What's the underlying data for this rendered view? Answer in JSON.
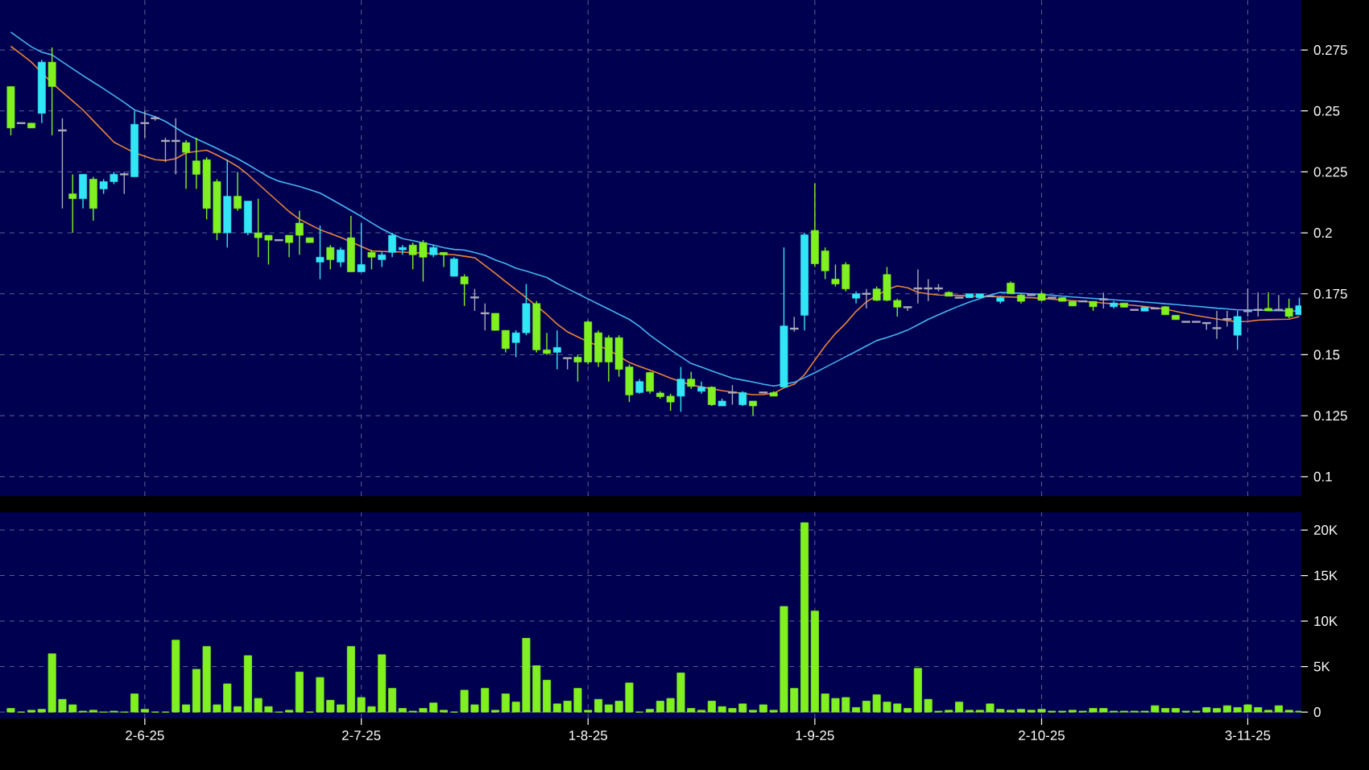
{
  "chart_data": [
    {
      "type": "candlestick",
      "tick_labels": "y",
      "grid": true,
      "categories": [
        null,
        null,
        null,
        null,
        null,
        null,
        null,
        null,
        null,
        null,
        null,
        null,
        null,
        null,
        null,
        null,
        null,
        null,
        null,
        null,
        null,
        null,
        null,
        null,
        null,
        null,
        null,
        null,
        null,
        null,
        null,
        null,
        null,
        null,
        null,
        null,
        null,
        null,
        null,
        null,
        null,
        null,
        null,
        null,
        null,
        null,
        null,
        null,
        null,
        null,
        null,
        null,
        null,
        null,
        null,
        null,
        null,
        null,
        null,
        null,
        null,
        null,
        null,
        null,
        null,
        null,
        null,
        null,
        null,
        null,
        null,
        null,
        null,
        null,
        null,
        null,
        null,
        null,
        null,
        null,
        null,
        null,
        null,
        null,
        null,
        null,
        null,
        null,
        null,
        null,
        null,
        null,
        null,
        null,
        null,
        null,
        null,
        null,
        null,
        null,
        null,
        null,
        null,
        null,
        null,
        null,
        null,
        null,
        null,
        null,
        null,
        null,
        null,
        null,
        null,
        null,
        null,
        null,
        null,
        null,
        null,
        null,
        null,
        null,
        null,
        null
      ],
      "ohlc": [
        [
          0.26,
          0.26,
          0.24,
          0.243
        ],
        [
          0.245,
          0.245,
          0.245,
          0.245
        ],
        [
          0.245,
          0.245,
          0.243,
          0.243
        ],
        [
          0.249,
          0.271,
          0.245,
          0.27
        ],
        [
          0.27,
          0.276,
          0.24,
          0.26
        ],
        [
          0.242,
          0.247,
          0.21,
          0.242
        ],
        [
          0.216,
          0.224,
          0.2,
          0.214
        ],
        [
          0.214,
          0.224,
          0.21,
          0.224
        ],
        [
          0.222,
          0.223,
          0.205,
          0.21
        ],
        [
          0.218,
          0.222,
          0.216,
          0.221
        ],
        [
          0.221,
          0.225,
          0.22,
          0.224
        ],
        [
          0.224,
          0.225,
          0.216,
          0.224
        ],
        [
          0.223,
          0.25,
          0.223,
          0.2445
        ],
        [
          0.245,
          0.25,
          0.239,
          0.245
        ],
        [
          0.247,
          0.248,
          0.246,
          0.247
        ],
        [
          0.2377,
          0.239,
          0.229,
          0.2377
        ],
        [
          0.2377,
          0.247,
          0.224,
          0.2377
        ],
        [
          0.237,
          0.238,
          0.218,
          0.233
        ],
        [
          0.2295,
          0.239,
          0.218,
          0.224
        ],
        [
          0.23,
          0.231,
          0.2055,
          0.21
        ],
        [
          0.221,
          0.222,
          0.197,
          0.2
        ],
        [
          0.2,
          0.23,
          0.194,
          0.215
        ],
        [
          0.215,
          0.225,
          0.209,
          0.21
        ],
        [
          0.2,
          0.213,
          0.199,
          0.213
        ],
        [
          0.2,
          0.214,
          0.19,
          0.198
        ],
        [
          0.199,
          0.199,
          0.187,
          0.197
        ],
        [
          0.197,
          0.197,
          0.197,
          0.197
        ],
        [
          0.199,
          0.199,
          0.19,
          0.196
        ],
        [
          0.204,
          0.209,
          0.191,
          0.199
        ],
        [
          0.198,
          0.198,
          0.196,
          0.196
        ],
        [
          0.188,
          0.203,
          0.181,
          0.19
        ],
        [
          0.194,
          0.195,
          0.185,
          0.189
        ],
        [
          0.188,
          0.194,
          0.186,
          0.193
        ],
        [
          0.198,
          0.207,
          0.184,
          0.184
        ],
        [
          0.184,
          0.204,
          0.184,
          0.187
        ],
        [
          0.192,
          0.193,
          0.185,
          0.19
        ],
        [
          0.189,
          0.192,
          0.186,
          0.191
        ],
        [
          0.192,
          0.2,
          0.19,
          0.199
        ],
        [
          0.193,
          0.195,
          0.191,
          0.194
        ],
        [
          0.195,
          0.196,
          0.185,
          0.191
        ],
        [
          0.196,
          0.197,
          0.18,
          0.19
        ],
        [
          0.191,
          0.195,
          0.19,
          0.194
        ],
        [
          0.192,
          0.192,
          0.186,
          0.191
        ],
        [
          0.1822,
          0.19,
          0.182,
          0.1893
        ],
        [
          0.182,
          0.183,
          0.17,
          0.179
        ],
        [
          0.1735,
          0.177,
          0.168,
          0.1735
        ],
        [
          0.167,
          0.171,
          0.16,
          0.167
        ],
        [
          0.167,
          0.167,
          0.16,
          0.16
        ],
        [
          0.16,
          0.16,
          0.151,
          0.1525
        ],
        [
          0.155,
          0.16,
          0.149,
          0.159
        ],
        [
          0.159,
          0.179,
          0.158,
          0.171
        ],
        [
          0.171,
          0.172,
          0.151,
          0.152
        ],
        [
          0.152,
          0.159,
          0.15,
          0.1505
        ],
        [
          0.151,
          0.16,
          0.144,
          0.153
        ],
        [
          0.1486,
          0.1486,
          0.144,
          0.1486
        ],
        [
          0.149,
          0.15,
          0.139,
          0.147
        ],
        [
          0.1635,
          0.164,
          0.146,
          0.147
        ],
        [
          0.159,
          0.16,
          0.145,
          0.147
        ],
        [
          0.157,
          0.158,
          0.139,
          0.147
        ],
        [
          0.157,
          0.158,
          0.141,
          0.144
        ],
        [
          0.145,
          0.146,
          0.1306,
          0.1335
        ],
        [
          0.1345,
          0.14,
          0.134,
          0.139
        ],
        [
          0.1427,
          0.143,
          0.134,
          0.135
        ],
        [
          0.1343,
          0.135,
          0.132,
          0.1328
        ],
        [
          0.133,
          0.134,
          0.127,
          0.1306
        ],
        [
          0.133,
          0.145,
          0.1266,
          0.14
        ],
        [
          0.14,
          0.143,
          0.136,
          0.137
        ],
        [
          0.135,
          0.139,
          0.134,
          0.1367
        ],
        [
          0.1367,
          0.137,
          0.129,
          0.1295
        ],
        [
          0.129,
          0.132,
          0.129,
          0.131
        ],
        [
          0.1345,
          0.1375,
          0.1295,
          0.1345
        ],
        [
          0.1295,
          0.135,
          0.129,
          0.1345
        ],
        [
          0.131,
          0.131,
          0.125,
          0.129
        ],
        [
          0.1345,
          0.1345,
          0.1345,
          0.1345
        ],
        [
          0.1345,
          0.135,
          0.133,
          0.133
        ],
        [
          0.1367,
          0.194,
          0.1367,
          0.1618
        ],
        [
          0.1607,
          0.1655,
          0.1595,
          0.1607
        ],
        [
          0.1662,
          0.2,
          0.16,
          0.1992
        ],
        [
          0.201,
          0.2203,
          0.186,
          0.1873
        ],
        [
          0.1926,
          0.194,
          0.181,
          0.1844
        ],
        [
          0.181,
          0.187,
          0.178,
          0.179
        ],
        [
          0.187,
          0.188,
          0.176,
          0.177
        ],
        [
          0.1732,
          0.176,
          0.171,
          0.175
        ],
        [
          0.175,
          0.177,
          0.169,
          0.175
        ],
        [
          0.177,
          0.178,
          0.172,
          0.1723
        ],
        [
          0.1829,
          0.186,
          0.172,
          0.1723
        ],
        [
          0.1723,
          0.173,
          0.1657,
          0.1695
        ],
        [
          0.1695,
          0.1695,
          0.168,
          0.1695
        ],
        [
          0.1772,
          0.185,
          0.171,
          0.1772
        ],
        [
          0.1772,
          0.181,
          0.172,
          0.1772
        ],
        [
          0.1772,
          0.179,
          0.176,
          0.1772
        ],
        [
          0.1756,
          0.176,
          0.174,
          0.174
        ],
        [
          0.1734,
          0.1734,
          0.1734,
          0.1734
        ],
        [
          0.1734,
          0.175,
          0.1734,
          0.175
        ],
        [
          0.1734,
          0.175,
          0.1734,
          0.175
        ],
        [
          0.174,
          0.174,
          0.174,
          0.174
        ],
        [
          0.1719,
          0.174,
          0.171,
          0.1734
        ],
        [
          0.1794,
          0.18,
          0.175,
          0.175
        ],
        [
          0.1745,
          0.175,
          0.171,
          0.1719
        ],
        [
          0.1745,
          0.1745,
          0.1745,
          0.1745
        ],
        [
          0.175,
          0.176,
          0.172,
          0.1723
        ],
        [
          0.1734,
          0.1734,
          0.1734,
          0.1734
        ],
        [
          0.1734,
          0.1734,
          0.1719,
          0.1719
        ],
        [
          0.1719,
          0.1719,
          0.17,
          0.17
        ],
        [
          0.1719,
          0.1719,
          0.1719,
          0.1719
        ],
        [
          0.1719,
          0.1719,
          0.168,
          0.1697
        ],
        [
          0.1727,
          0.1755,
          0.169,
          0.1727
        ],
        [
          0.1697,
          0.172,
          0.169,
          0.1712
        ],
        [
          0.1712,
          0.1712,
          0.1695,
          0.1695
        ],
        [
          0.1684,
          0.1684,
          0.1684,
          0.1684
        ],
        [
          0.1679,
          0.1695,
          0.1679,
          0.1695
        ],
        [
          0.169,
          0.169,
          0.169,
          0.169
        ],
        [
          0.1697,
          0.17,
          0.1664,
          0.1664
        ],
        [
          0.1662,
          0.1662,
          0.1644,
          0.1644
        ],
        [
          0.1635,
          0.1635,
          0.1635,
          0.1635
        ],
        [
          0.1635,
          0.1635,
          0.1635,
          0.1635
        ],
        [
          0.163,
          0.163,
          0.1602,
          0.163
        ],
        [
          0.1609,
          0.168,
          0.1565,
          0.1609
        ],
        [
          0.1646,
          0.168,
          0.1615,
          0.1646
        ],
        [
          0.158,
          0.168,
          0.152,
          0.1657
        ],
        [
          0.1679,
          0.1772,
          0.1657,
          0.1679
        ],
        [
          0.1684,
          0.1756,
          0.1657,
          0.1684
        ],
        [
          0.169,
          0.1756,
          0.168,
          0.168
        ],
        [
          0.1684,
          0.1745,
          0.1684,
          0.1684
        ],
        [
          0.169,
          0.173,
          0.165,
          0.1657
        ],
        [
          0.1664,
          0.1734,
          0.1664,
          0.1701
        ]
      ],
      "colors": [
        "#80f020",
        "#a8a8b8",
        "#80f020",
        "#33e6f5",
        "#80f020",
        "#a8a8b8",
        "#80f020",
        "#33e6f5",
        "#80f020",
        "#33e6f5",
        "#33e6f5",
        "#a8a8b8",
        "#33e6f5",
        "#a8a8b8",
        "#a8a8b8",
        "#a8a8b8",
        "#a8a8b8",
        "#80f020",
        "#80f020",
        "#80f020",
        "#80f020",
        "#33e6f5",
        "#80f020",
        "#33e6f5",
        "#80f020",
        "#80f020",
        "#a8a8b8",
        "#80f020",
        "#80f020",
        "#80f020",
        "#33e6f5",
        "#80f020",
        "#33e6f5",
        "#80f020",
        "#33e6f5",
        "#80f020",
        "#33e6f5",
        "#33e6f5",
        "#33e6f5",
        "#80f020",
        "#80f020",
        "#33e6f5",
        "#80f020",
        "#33e6f5",
        "#80f020",
        "#a8a8b8",
        "#a8a8b8",
        "#80f020",
        "#80f020",
        "#33e6f5",
        "#33e6f5",
        "#80f020",
        "#80f020",
        "#33e6f5",
        "#a8a8b8",
        "#80f020",
        "#80f020",
        "#80f020",
        "#80f020",
        "#80f020",
        "#80f020",
        "#33e6f5",
        "#80f020",
        "#80f020",
        "#80f020",
        "#33e6f5",
        "#80f020",
        "#33e6f5",
        "#80f020",
        "#33e6f5",
        "#a8a8b8",
        "#33e6f5",
        "#80f020",
        "#a8a8b8",
        "#80f020",
        "#33e6f5",
        "#a8a8b8",
        "#33e6f5",
        "#80f020",
        "#80f020",
        "#80f020",
        "#80f020",
        "#33e6f5",
        "#a8a8b8",
        "#80f020",
        "#80f020",
        "#80f020",
        "#a8a8b8",
        "#a8a8b8",
        "#a8a8b8",
        "#a8a8b8",
        "#80f020",
        "#a8a8b8",
        "#33e6f5",
        "#33e6f5",
        "#a8a8b8",
        "#33e6f5",
        "#80f020",
        "#80f020",
        "#a8a8b8",
        "#80f020",
        "#a8a8b8",
        "#80f020",
        "#80f020",
        "#a8a8b8",
        "#80f020",
        "#a8a8b8",
        "#33e6f5",
        "#80f020",
        "#a8a8b8",
        "#33e6f5",
        "#a8a8b8",
        "#80f020",
        "#80f020",
        "#a8a8b8",
        "#a8a8b8",
        "#a8a8b8",
        "#a8a8b8",
        "#a8a8b8",
        "#33e6f5",
        "#a8a8b8",
        "#a8a8b8",
        "#80f020",
        "#a8a8b8",
        "#80f020",
        "#33e6f5"
      ],
      "series": [
        {
          "type": "line",
          "color": "#e8843c",
          "values": [
            0.2765,
            0.2733,
            0.27,
            0.2657,
            0.2614,
            0.2577,
            0.2541,
            0.2504,
            0.246,
            0.2416,
            0.2372,
            0.235,
            0.2328,
            0.2314,
            0.23,
            0.2297,
            0.2304,
            0.2328,
            0.2334,
            0.2339,
            0.2319,
            0.2297,
            0.2272,
            0.2239,
            0.2201,
            0.2163,
            0.2125,
            0.2087,
            0.2056,
            0.2034,
            0.2013,
            0.1997,
            0.1981,
            0.1963,
            0.1944,
            0.1926,
            0.1924,
            0.1923,
            0.1921,
            0.1919,
            0.1917,
            0.1915,
            0.1912,
            0.191,
            0.1904,
            0.1898,
            0.1866,
            0.1834,
            0.18,
            0.1767,
            0.1734,
            0.17,
            0.1665,
            0.1626,
            0.1594,
            0.1573,
            0.1553,
            0.1537,
            0.152,
            0.1494,
            0.1468,
            0.1452,
            0.1437,
            0.1421,
            0.1404,
            0.139,
            0.1376,
            0.1368,
            0.136,
            0.1353,
            0.1347,
            0.1341,
            0.1336,
            0.1337,
            0.1342,
            0.1364,
            0.1379,
            0.1418,
            0.1478,
            0.1536,
            0.1587,
            0.1629,
            0.1678,
            0.1717,
            0.1742,
            0.1767,
            0.1782,
            0.1775,
            0.1756,
            0.175,
            0.1745,
            0.1744,
            0.1743,
            0.1741,
            0.174,
            0.1739,
            0.1738,
            0.1737,
            0.1735,
            0.1734,
            0.1731,
            0.1728,
            0.1725,
            0.1722,
            0.1719,
            0.1716,
            0.1712,
            0.1709,
            0.1706,
            0.1702,
            0.1698,
            0.1692,
            0.1687,
            0.1678,
            0.1669,
            0.1661,
            0.1654,
            0.1647,
            0.164,
            0.1635,
            0.1637,
            0.1642,
            0.1644,
            0.1645,
            0.1646,
            0.1657
          ]
        },
        {
          "type": "line",
          "color": "#45b4f0",
          "values": [
            0.2823,
            0.2793,
            0.2763,
            0.2741,
            0.273,
            0.2701,
            0.2673,
            0.2645,
            0.2618,
            0.2591,
            0.2563,
            0.2535,
            0.2504,
            0.249,
            0.2476,
            0.2457,
            0.2431,
            0.2405,
            0.2385,
            0.2366,
            0.2346,
            0.2325,
            0.2304,
            0.228,
            0.2255,
            0.223,
            0.2212,
            0.2201,
            0.219,
            0.2177,
            0.2163,
            0.214,
            0.2116,
            0.2092,
            0.2067,
            0.2041,
            0.2016,
            0.1995,
            0.1976,
            0.1968,
            0.1959,
            0.195,
            0.1939,
            0.1932,
            0.1929,
            0.1919,
            0.1908,
            0.1889,
            0.1874,
            0.1855,
            0.1843,
            0.183,
            0.1817,
            0.1792,
            0.1771,
            0.175,
            0.1729,
            0.1708,
            0.1687,
            0.1666,
            0.1645,
            0.1616,
            0.158,
            0.155,
            0.152,
            0.1492,
            0.1464,
            0.1449,
            0.1434,
            0.1419,
            0.1404,
            0.1396,
            0.1388,
            0.1379,
            0.1372,
            0.1379,
            0.1387,
            0.1406,
            0.1426,
            0.1448,
            0.147,
            0.1492,
            0.1514,
            0.1536,
            0.1558,
            0.1571,
            0.1585,
            0.1601,
            0.1623,
            0.1645,
            0.1664,
            0.1682,
            0.17,
            0.1716,
            0.173,
            0.1745,
            0.1756,
            0.1754,
            0.1752,
            0.175,
            0.1747,
            0.1744,
            0.174,
            0.1737,
            0.1734,
            0.1731,
            0.1728,
            0.1725,
            0.1722,
            0.172,
            0.1716,
            0.1713,
            0.1709,
            0.1706,
            0.1702,
            0.1699,
            0.1695,
            0.1691,
            0.1688,
            0.1684,
            0.1684,
            0.1683,
            0.1682,
            0.1681,
            0.168,
            0.1679
          ]
        }
      ],
      "ylim": [
        0.092,
        0.2955
      ],
      "yticks": [
        0.1,
        0.125,
        0.15,
        0.175,
        0.2,
        0.225,
        0.25,
        0.275
      ]
    },
    {
      "type": "bar",
      "grid": true,
      "color": "#80f020",
      "categories": [
        null,
        null,
        null,
        null,
        null,
        null,
        null,
        null,
        null,
        null,
        null,
        null,
        null,
        "2-6-25",
        null,
        null,
        null,
        null,
        null,
        null,
        null,
        null,
        null,
        null,
        null,
        null,
        null,
        null,
        null,
        null,
        null,
        null,
        null,
        null,
        "2-7-25",
        null,
        null,
        null,
        null,
        null,
        null,
        null,
        null,
        null,
        null,
        null,
        null,
        null,
        null,
        null,
        null,
        null,
        null,
        null,
        null,
        null,
        "1-8-25",
        null,
        null,
        null,
        null,
        null,
        null,
        null,
        null,
        null,
        null,
        null,
        null,
        null,
        null,
        null,
        null,
        null,
        null,
        null,
        null,
        null,
        "1-9-25",
        null,
        null,
        null,
        null,
        null,
        null,
        null,
        null,
        null,
        null,
        null,
        null,
        null,
        null,
        null,
        null,
        null,
        null,
        null,
        null,
        null,
        "2-10-25",
        null,
        null,
        null,
        null,
        null,
        null,
        null,
        null,
        null,
        null,
        null,
        null,
        null,
        null,
        null,
        null,
        null,
        null,
        null,
        "3-11-25",
        null,
        null,
        null,
        null,
        null
      ],
      "values": [
        400,
        0,
        200,
        300,
        6400,
        1400,
        800,
        100,
        200,
        0,
        100,
        0,
        2000,
        300,
        0,
        0,
        7900,
        800,
        4700,
        7200,
        800,
        3100,
        600,
        6200,
        1500,
        600,
        0,
        200,
        4400,
        0,
        3800,
        1300,
        800,
        7200,
        1600,
        600,
        6300,
        2600,
        400,
        100,
        400,
        1000,
        200,
        0,
        2400,
        800,
        2600,
        200,
        2000,
        1100,
        8100,
        5100,
        3500,
        900,
        1200,
        2600,
        200,
        1400,
        800,
        1200,
        3200,
        0,
        300,
        1200,
        1500,
        4300,
        400,
        200,
        1200,
        600,
        400,
        900,
        200,
        800,
        200,
        11600,
        2600,
        20800,
        11100,
        2000,
        1500,
        1600,
        500,
        1200,
        1900,
        1100,
        900,
        400,
        4800,
        1400,
        100,
        200,
        1100,
        200,
        200,
        900,
        300,
        200,
        300,
        200,
        300,
        100,
        100,
        200,
        100,
        400,
        400,
        100,
        100,
        100,
        100,
        700,
        400,
        400,
        100,
        100,
        500,
        400,
        700,
        500,
        800,
        500,
        200,
        700,
        200,
        100
      ],
      "ylim": [
        -700,
        21950
      ],
      "yticks": [
        0,
        {
          "value": 5000,
          "label": "5K"
        },
        {
          "value": 10000,
          "label": "10K"
        },
        {
          "value": 15000,
          "label": "15K"
        },
        {
          "value": 20000,
          "label": "20K"
        }
      ]
    }
  ]
}
